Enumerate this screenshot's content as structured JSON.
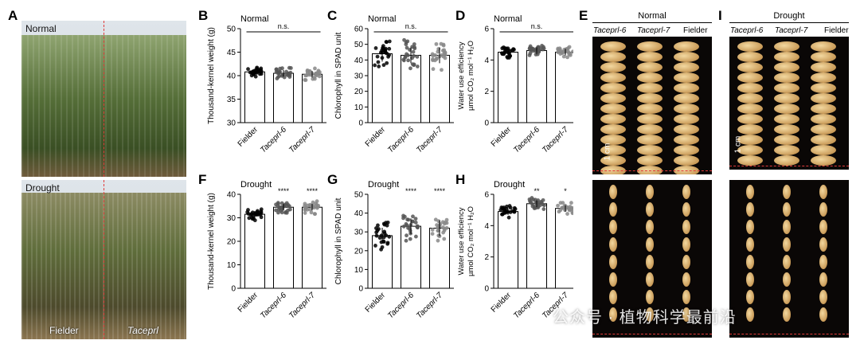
{
  "panels": {
    "A": "A",
    "B": "B",
    "C": "C",
    "D": "D",
    "E": "E",
    "F": "F",
    "G": "G",
    "H": "H",
    "I": "I"
  },
  "photo_a": {
    "top_label": "Normal",
    "bottom_label": "Drought",
    "left_caption": "Fielder",
    "right_caption": "Taceprl"
  },
  "chart_data": [
    {
      "panel": "B",
      "type": "bar",
      "title": "Normal",
      "ylabel": "Thousand-kernel weight (g)",
      "ylim": [
        30,
        50
      ],
      "yticks": [
        30,
        35,
        40,
        45,
        50
      ],
      "categories": [
        "Fielder",
        "Taceprl-6",
        "Taceprl-7"
      ],
      "values": [
        40.8,
        40.5,
        40.3
      ],
      "significance": [
        "n.s."
      ]
    },
    {
      "panel": "C",
      "type": "bar",
      "title": "Normal",
      "ylabel": "Chlorophyll in SPAD unit",
      "ylim": [
        0,
        60
      ],
      "yticks": [
        0,
        10,
        20,
        30,
        40,
        50,
        60
      ],
      "categories": [
        "Fielder",
        "Taceprl-6",
        "Taceprl-7"
      ],
      "values": [
        44,
        43,
        43
      ],
      "significance": [
        "n.s."
      ]
    },
    {
      "panel": "D",
      "type": "bar",
      "title": "Normal",
      "ylabel": "Water use efficiency µmol CO2 mol-1 H2O",
      "ylim": [
        0,
        6
      ],
      "yticks": [
        0,
        2,
        4,
        6
      ],
      "categories": [
        "Fielder",
        "Taceprl-6",
        "Taceprl-7"
      ],
      "values": [
        4.5,
        4.6,
        4.5
      ],
      "significance": [
        "n.s."
      ]
    },
    {
      "panel": "F",
      "type": "bar",
      "title": "Drought",
      "ylabel": "Thousand-kernel weight (g)",
      "ylim": [
        0,
        40
      ],
      "yticks": [
        0,
        10,
        20,
        30,
        40
      ],
      "categories": [
        "Fielder",
        "Taceprl-6",
        "Taceprl-7"
      ],
      "values": [
        31.5,
        34.5,
        34.5
      ],
      "significance": [
        "",
        "****",
        "****"
      ]
    },
    {
      "panel": "G",
      "type": "bar",
      "title": "Drought",
      "ylabel": "Chlorophyll in SPAD unit",
      "ylim": [
        0,
        50
      ],
      "yticks": [
        0,
        10,
        20,
        30,
        40,
        50
      ],
      "categories": [
        "Fielder",
        "Taceprl-6",
        "Taceprl-7"
      ],
      "values": [
        28,
        33,
        32
      ],
      "significance": [
        "",
        "****",
        "****"
      ]
    },
    {
      "panel": "H",
      "type": "bar",
      "title": "Drought",
      "ylabel": "Water use efficiency µmol CO2 mol-1 H2O",
      "ylim": [
        0,
        6
      ],
      "yticks": [
        0,
        2,
        4,
        6
      ],
      "categories": [
        "Fielder",
        "Taceprl-6",
        "Taceprl-7"
      ],
      "values": [
        4.9,
        5.4,
        5.1
      ],
      "significance": [
        "",
        "**",
        "*"
      ]
    }
  ],
  "seed_panels": {
    "E": {
      "title": "Normal",
      "columns": [
        "Taceprl-6",
        "Taceprl-7",
        "Fielder"
      ],
      "scale": "1 cm"
    },
    "I": {
      "title": "Drought",
      "columns": [
        "Taceprl-6",
        "Taceprl-7",
        "Fielder"
      ],
      "scale": "1 cm"
    }
  },
  "watermark": "公众号 · 植物科学最前沿"
}
